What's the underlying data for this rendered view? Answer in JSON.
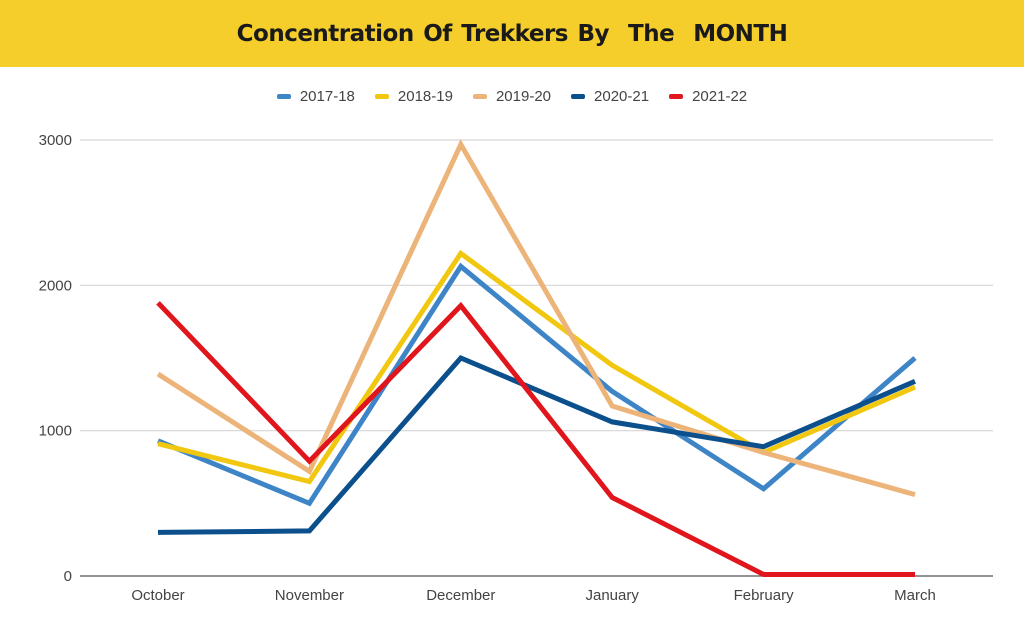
{
  "chart_data": {
    "type": "line",
    "title": "Concentration Of Trekkers By  The  MONTH",
    "xlabel": "",
    "ylabel": "",
    "categories": [
      "October",
      "November",
      "December",
      "January",
      "February",
      "March"
    ],
    "ylim": [
      0,
      3000
    ],
    "yticks": [
      0,
      1000,
      2000,
      3000
    ],
    "ytick_labels": [
      "0",
      "1000",
      "2000",
      "3000"
    ],
    "grid": true,
    "legend_position": "top-center",
    "series": [
      {
        "name": "2017-18",
        "color": "#3D85C6",
        "values": [
          930,
          500,
          2130,
          1270,
          600,
          1500
        ]
      },
      {
        "name": "2018-19",
        "color": "#F1C80F",
        "values": [
          910,
          650,
          2220,
          1450,
          850,
          1300
        ]
      },
      {
        "name": "2019-20",
        "color": "#EDB47A",
        "values": [
          1390,
          720,
          2970,
          1170,
          850,
          560
        ]
      },
      {
        "name": "2020-21",
        "color": "#0B4F8C",
        "values": [
          300,
          310,
          1500,
          1060,
          890,
          1340
        ]
      },
      {
        "name": "2021-22",
        "color": "#E0161C",
        "values": [
          1880,
          790,
          1860,
          540,
          10,
          10
        ]
      }
    ]
  }
}
